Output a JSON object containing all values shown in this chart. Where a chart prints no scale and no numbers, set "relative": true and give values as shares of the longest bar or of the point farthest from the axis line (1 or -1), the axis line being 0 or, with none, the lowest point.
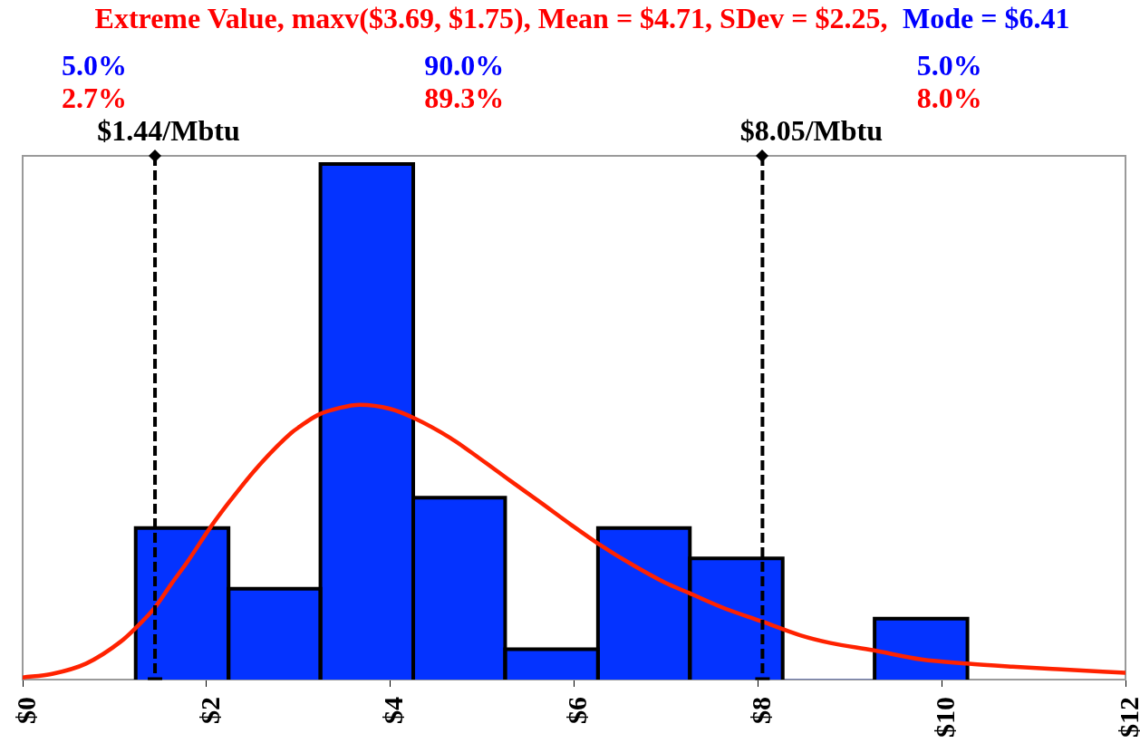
{
  "chart_data": {
    "type": "histogram",
    "title": "Extreme Value, maxv($3.69, $1.75), Mean = $4.71, SDev = $2.25,",
    "subtitle": "Mode = $6.41",
    "relative": true,
    "bins": [
      1.23,
      2.24,
      3.24,
      4.25,
      5.25,
      6.26,
      7.26,
      8.27,
      9.27,
      10.28
    ],
    "series": [
      {
        "type": "histogram",
        "color": "#0433ff",
        "values": [
          0.294,
          0.176,
          1,
          0.353,
          0.059,
          0.294,
          0.235,
          0,
          0.118
        ]
      },
      {
        "type": "line",
        "color": "#ff2200",
        "x": [
          0,
          0.32,
          0.69,
          1.07,
          1.23,
          1.44,
          1.62,
          1.81,
          2.03,
          2.25,
          2.55,
          2.92,
          3.01,
          3.21,
          3.45,
          3.67,
          4.0,
          4.26,
          4.65,
          4.98,
          5.31,
          5.64,
          5.97,
          6.26,
          6.66,
          6.99,
          7.25,
          7.64,
          8.04,
          8.46,
          8.79,
          9.25,
          9.78,
          10.27,
          10.77,
          11.26,
          12
        ],
        "values": [
          0.004,
          0.011,
          0.031,
          0.074,
          0.1,
          0.14,
          0.186,
          0.233,
          0.292,
          0.345,
          0.411,
          0.478,
          0.49,
          0.513,
          0.527,
          0.533,
          0.525,
          0.507,
          0.469,
          0.428,
          0.385,
          0.343,
          0.3,
          0.264,
          0.22,
          0.188,
          0.168,
          0.138,
          0.113,
          0.086,
          0.071,
          0.057,
          0.039,
          0.031,
          0.025,
          0.02,
          0.013
        ]
      }
    ],
    "xlim": [
      0,
      12
    ],
    "xticks": [
      {
        "value": 0,
        "label": "$0"
      },
      {
        "value": 2,
        "label": "$2"
      },
      {
        "value": 4,
        "label": "$4"
      },
      {
        "value": 6,
        "label": "$6"
      },
      {
        "value": 8,
        "label": "$8"
      },
      {
        "value": 10,
        "label": "$10"
      },
      {
        "value": 12,
        "label": "$12"
      }
    ],
    "ref_lines": [
      {
        "axis": "x",
        "value": 1.44,
        "label": "$1.44/Mbtu",
        "color": "#000000",
        "line_style": "dashed"
      },
      {
        "axis": "x",
        "value": 8.05,
        "label": "$8.05/Mbtu",
        "color": "#000000",
        "line_style": "dashed"
      }
    ],
    "annotations": [
      "5.0%",
      "90.0%",
      "5.0%",
      "2.7%",
      "89.3%",
      "8.0%"
    ],
    "grid": false,
    "legend": false,
    "marker": "none"
  }
}
